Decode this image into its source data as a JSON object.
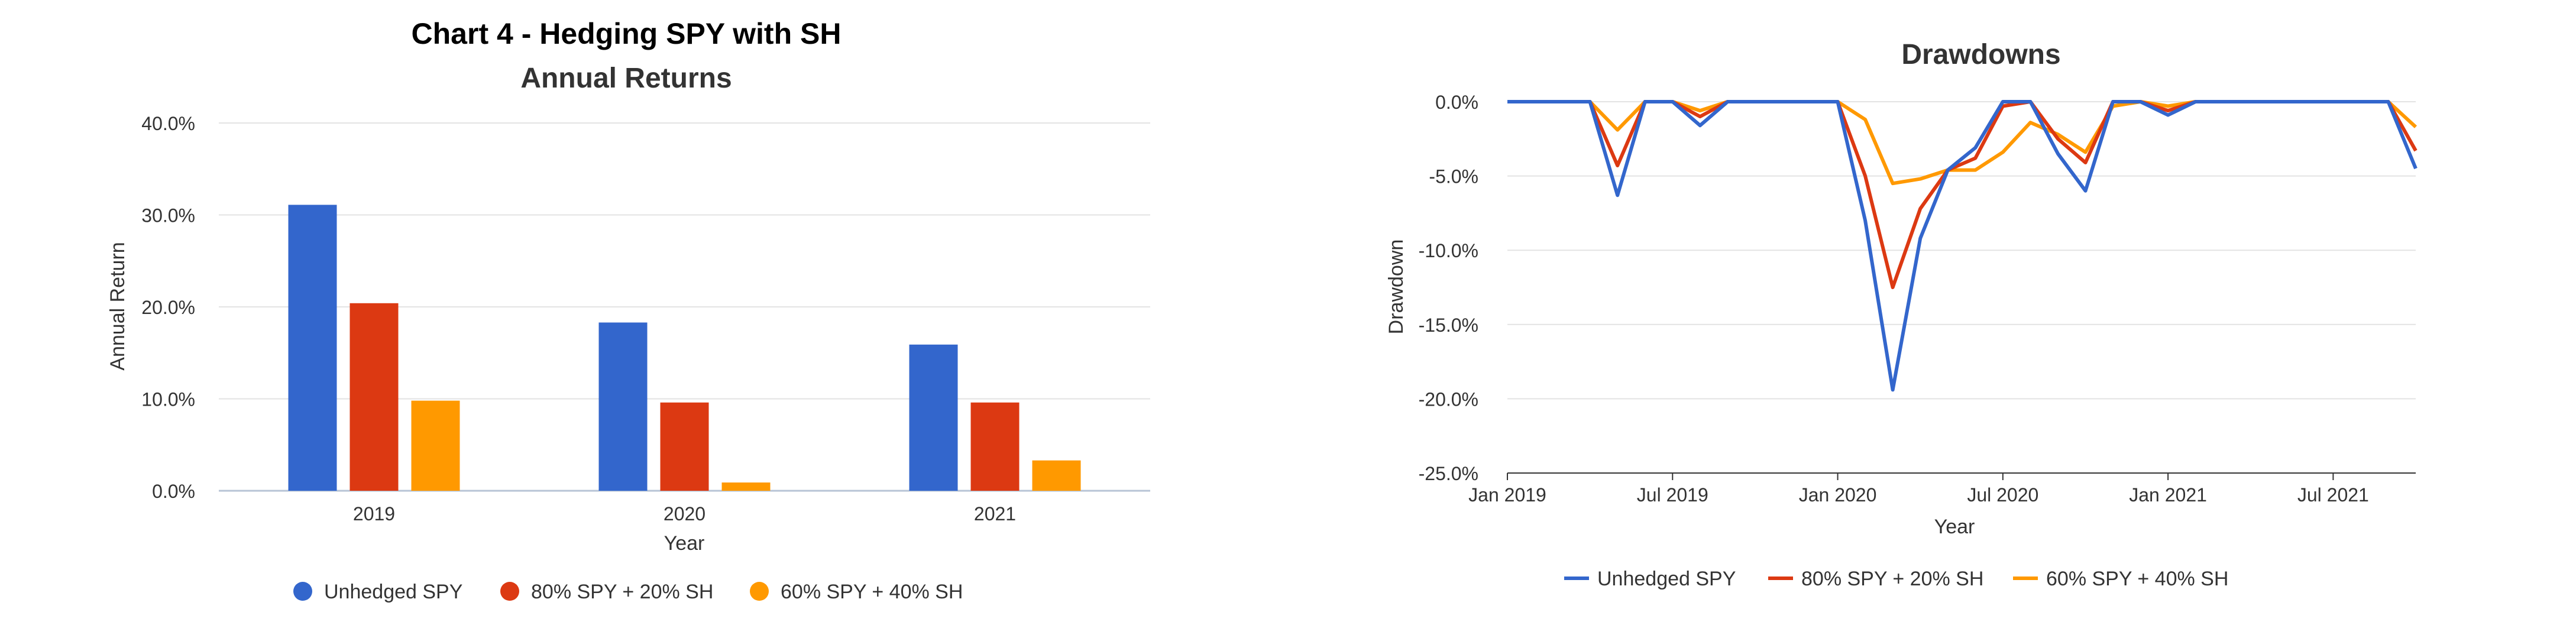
{
  "colors": {
    "unhedged": "#3366cc",
    "spy80": "#dc3912",
    "spy60": "#ff9900"
  },
  "chart_data": [
    {
      "type": "bar",
      "title": "Chart 4 - Hedging SPY with SH",
      "subtitle": "Annual Returns",
      "xlabel": "Year",
      "ylabel": "Annual Return",
      "categories": [
        "2019",
        "2020",
        "2021"
      ],
      "ylim": [
        0,
        40
      ],
      "yticks": [
        "0.0%",
        "10.0%",
        "20.0%",
        "30.0%",
        "40.0%"
      ],
      "ytick_values": [
        0,
        10,
        20,
        30,
        40
      ],
      "grid": true,
      "legend": "bottom",
      "series": [
        {
          "name": "Unhedged SPY",
          "color": "#3366cc",
          "values": [
            31.1,
            18.3,
            15.9
          ]
        },
        {
          "name": "80% SPY + 20% SH",
          "color": "#dc3912",
          "values": [
            20.4,
            9.6,
            9.6
          ]
        },
        {
          "name": "60% SPY + 40% SH",
          "color": "#ff9900",
          "values": [
            9.8,
            0.9,
            3.3
          ]
        }
      ]
    },
    {
      "type": "line",
      "title": "Drawdowns",
      "xlabel": "Year",
      "ylabel": "Drawdown",
      "x": [
        "2019-01",
        "2019-02",
        "2019-03",
        "2019-04",
        "2019-05",
        "2019-06",
        "2019-07",
        "2019-08",
        "2019-09",
        "2019-10",
        "2019-11",
        "2019-12",
        "2020-01",
        "2020-02",
        "2020-03",
        "2020-04",
        "2020-05",
        "2020-06",
        "2020-07",
        "2020-08",
        "2020-09",
        "2020-10",
        "2020-11",
        "2020-12",
        "2021-01",
        "2021-02",
        "2021-03",
        "2021-04",
        "2021-05",
        "2021-06",
        "2021-07",
        "2021-08",
        "2021-09",
        "2021-10"
      ],
      "xticks": [
        "Jan 2019",
        "Jul 2019",
        "Jan 2020",
        "Jul 2020",
        "Jan 2021",
        "Jul 2021"
      ],
      "xtick_index": [
        0,
        6,
        12,
        18,
        24,
        30
      ],
      "ylim": [
        -25,
        0
      ],
      "yticks": [
        "0.0%",
        "-5.0%",
        "-10.0%",
        "-15.0%",
        "-20.0%",
        "-25.0%"
      ],
      "ytick_values": [
        0,
        -5,
        -10,
        -15,
        -20,
        -25
      ],
      "grid": true,
      "legend": "bottom",
      "series": [
        {
          "name": "Unhedged SPY",
          "color": "#3366cc",
          "values": [
            0,
            0,
            0,
            0,
            -6.3,
            0,
            0,
            -1.6,
            0,
            0,
            0,
            0,
            0,
            -8.0,
            -19.4,
            -9.2,
            -4.6,
            -3.1,
            0,
            0,
            -3.5,
            -6.0,
            0,
            0,
            -0.9,
            0,
            0,
            0,
            0,
            0,
            0,
            0,
            0,
            -4.5
          ]
        },
        {
          "name": "80% SPY + 20% SH",
          "color": "#dc3912",
          "values": [
            0,
            0,
            0,
            0,
            -4.3,
            0,
            0,
            -1.0,
            0,
            0,
            0,
            0,
            0,
            -5.0,
            -12.5,
            -7.2,
            -4.6,
            -3.8,
            -0.3,
            0,
            -2.5,
            -4.1,
            0,
            0,
            -0.6,
            0,
            0,
            0,
            0,
            0,
            0,
            0,
            0,
            -3.3
          ]
        },
        {
          "name": "60% SPY + 40% SH",
          "color": "#ff9900",
          "values": [
            0,
            0,
            0,
            0,
            -1.9,
            0,
            0,
            -0.6,
            0,
            0,
            0,
            0,
            0,
            -1.2,
            -5.5,
            -5.2,
            -4.6,
            -4.6,
            -3.4,
            -1.4,
            -2.2,
            -3.4,
            -0.3,
            0,
            -0.3,
            0,
            0,
            0,
            0,
            0,
            0,
            0,
            0,
            -1.7
          ]
        }
      ]
    }
  ]
}
